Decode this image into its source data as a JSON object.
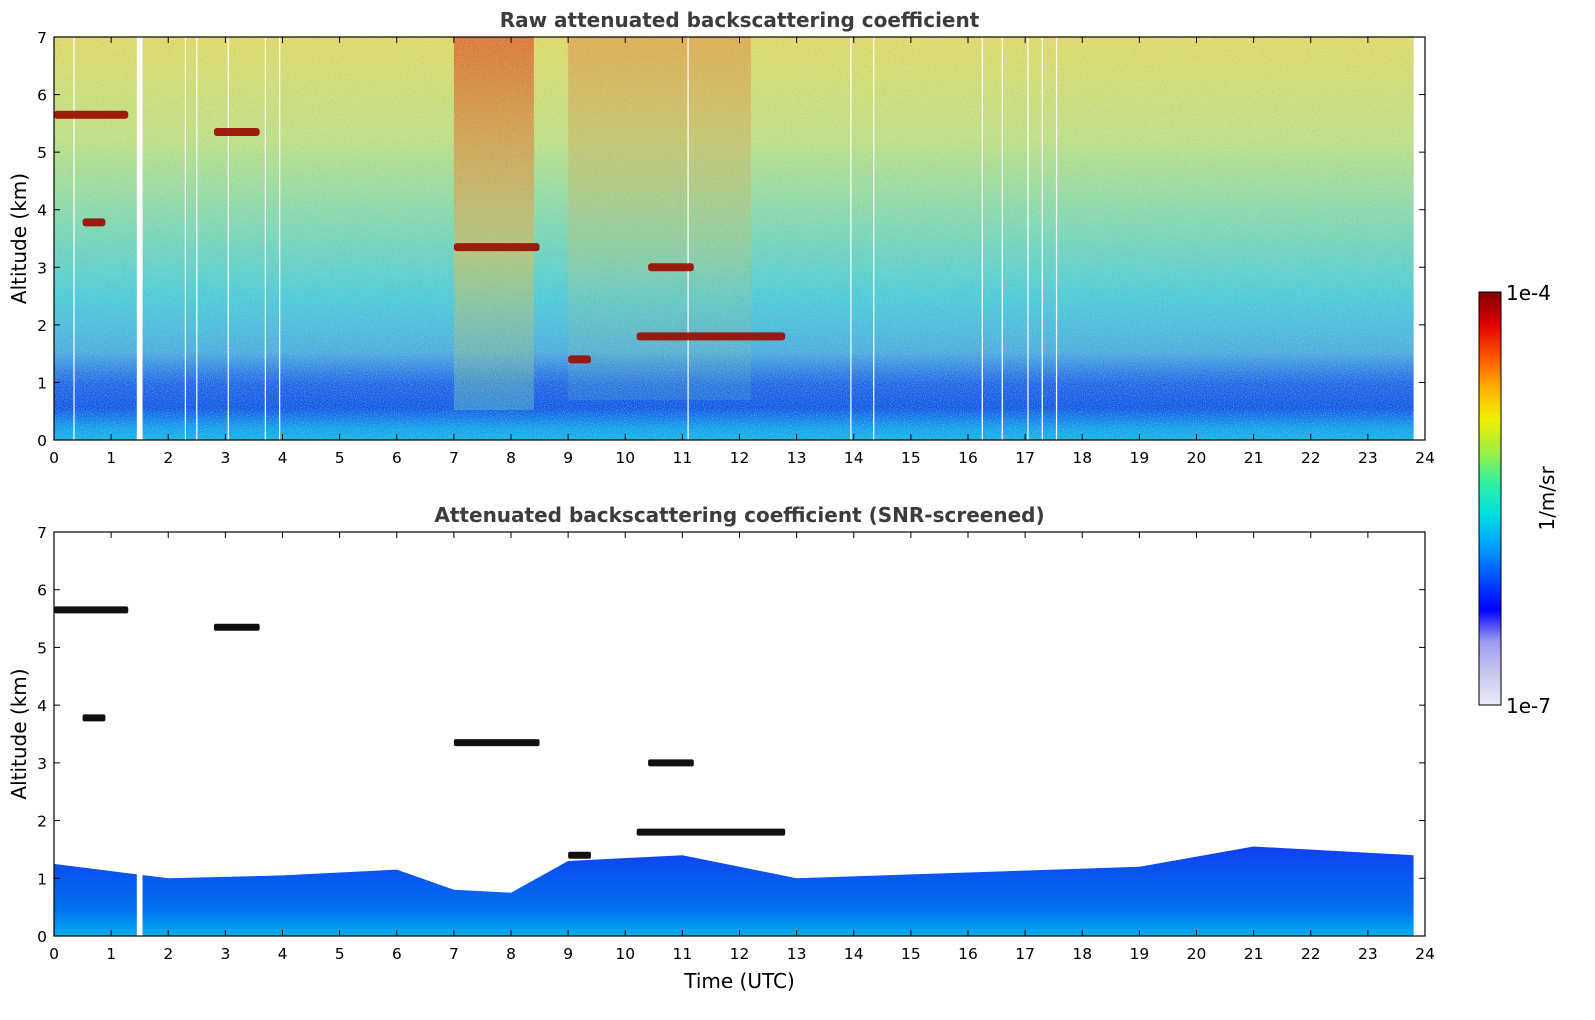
{
  "chart_data": [
    {
      "type": "heatmap",
      "title": "Raw attenuated backscattering coefficient",
      "xlabel": "",
      "ylabel": "Altitude (km)",
      "xlim": [
        0,
        24
      ],
      "ylim": [
        0,
        7
      ],
      "xticks": [
        "0",
        "1",
        "2",
        "3",
        "4",
        "5",
        "6",
        "7",
        "8",
        "9",
        "10",
        "11",
        "12",
        "13",
        "14",
        "15",
        "16",
        "17",
        "18",
        "19",
        "20",
        "21",
        "22",
        "23",
        "24"
      ],
      "yticks": [
        "0",
        "1",
        "2",
        "3",
        "4",
        "5",
        "6",
        "7"
      ],
      "data_end_time": 23.8,
      "data_gaps": [
        [
          1.45,
          1.55
        ]
      ],
      "cloud_layers": [
        {
          "t0": 0.0,
          "t1": 1.3,
          "alt": 5.65
        },
        {
          "t0": 2.8,
          "t1": 3.6,
          "alt": 5.35
        },
        {
          "t0": 0.5,
          "t1": 0.9,
          "alt": 3.78
        },
        {
          "t0": 7.0,
          "t1": 8.5,
          "alt": 3.35
        },
        {
          "t0": 9.0,
          "t1": 9.4,
          "alt": 1.4
        },
        {
          "t0": 10.4,
          "t1": 11.2,
          "alt": 3.0
        },
        {
          "t0": 10.2,
          "t1": 12.8,
          "alt": 1.8
        }
      ]
    },
    {
      "type": "heatmap",
      "title": "Attenuated backscattering coefficient (SNR-screened)",
      "xlabel": "Time (UTC)",
      "ylabel": "Altitude (km)",
      "xlim": [
        0,
        24
      ],
      "ylim": [
        0,
        7
      ],
      "xticks": [
        "0",
        "1",
        "2",
        "3",
        "4",
        "5",
        "6",
        "7",
        "8",
        "9",
        "10",
        "11",
        "12",
        "13",
        "14",
        "15",
        "16",
        "17",
        "18",
        "19",
        "20",
        "21",
        "22",
        "23",
        "24"
      ],
      "yticks": [
        "0",
        "1",
        "2",
        "3",
        "4",
        "5",
        "6",
        "7"
      ],
      "boundary_layer_top_km": [
        {
          "t": 0,
          "v": 1.25
        },
        {
          "t": 2,
          "v": 1.0
        },
        {
          "t": 4,
          "v": 1.05
        },
        {
          "t": 6,
          "v": 1.15
        },
        {
          "t": 7,
          "v": 0.8
        },
        {
          "t": 8,
          "v": 0.75
        },
        {
          "t": 9,
          "v": 1.3
        },
        {
          "t": 11,
          "v": 1.4
        },
        {
          "t": 13,
          "v": 1.0
        },
        {
          "t": 16,
          "v": 1.1
        },
        {
          "t": 19,
          "v": 1.2
        },
        {
          "t": 21,
          "v": 1.55
        },
        {
          "t": 23.8,
          "v": 1.4
        }
      ]
    }
  ],
  "colorbar": {
    "label": "1/m/sr",
    "max_label": "1e-4",
    "min_label": "1e-7",
    "colors": [
      "#eaeaf8",
      "#c8c8f0",
      "#9a9af0",
      "#0000ff",
      "#0050ff",
      "#00a0ff",
      "#00e0e0",
      "#30f0a0",
      "#a0f040",
      "#f0f000",
      "#ffb000",
      "#ff5000",
      "#e00000",
      "#800000"
    ]
  }
}
